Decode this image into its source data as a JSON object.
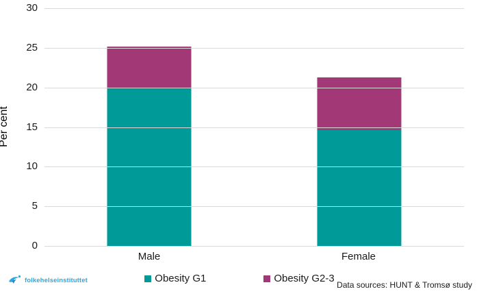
{
  "chart_data": {
    "type": "bar",
    "stacked": true,
    "categories": [
      "Male",
      "Female"
    ],
    "series": [
      {
        "name": "Obesity G1",
        "color": "#009B98",
        "values": [
          19.8,
          14.6
        ]
      },
      {
        "name": "Obesity G2-3",
        "color": "#A33876",
        "values": [
          5.4,
          6.7
        ]
      }
    ],
    "totals": [
      25.2,
      21.3
    ],
    "title": "",
    "xlabel": "",
    "ylabel": "Per cent",
    "ylim": [
      0,
      30
    ],
    "yticks": [
      0,
      5,
      10,
      15,
      20,
      25,
      30
    ],
    "grid": true,
    "gridline_color": "#d9d9d9",
    "legend_position": "bottom"
  },
  "footer": {
    "logo_text": "folkehelseinstituttet",
    "logo_color": "#2BA9E0",
    "data_sources": "Data sources: HUNT & Tromsø study"
  }
}
